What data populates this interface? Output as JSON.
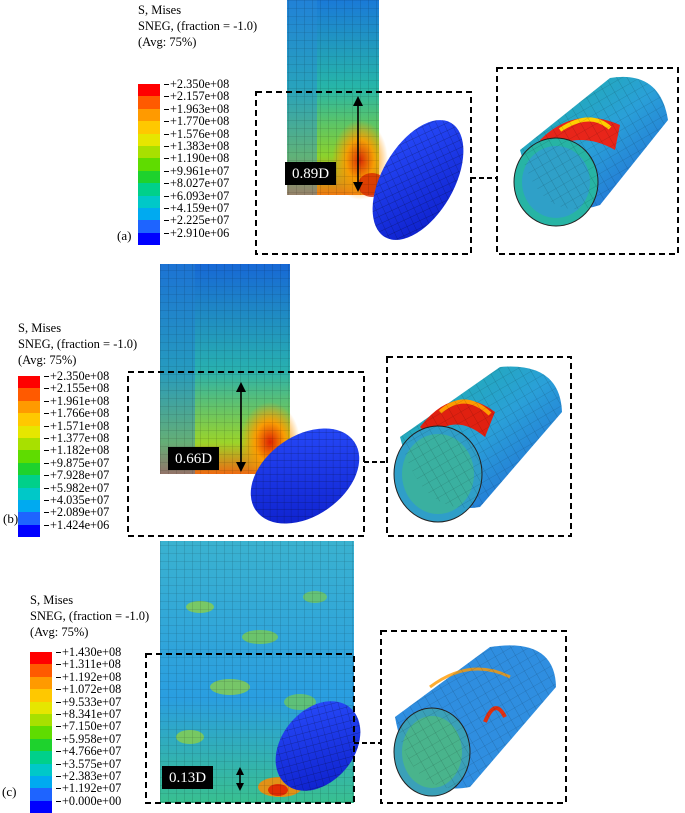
{
  "legend_colors": [
    "#ff0000",
    "#ff5a00",
    "#ff9a00",
    "#ffc800",
    "#e6e600",
    "#a8e000",
    "#5fdc00",
    "#1ed22d",
    "#00d08a",
    "#00c8c8",
    "#00aaf0",
    "#1e64ff",
    "#0000ff"
  ],
  "panels": [
    {
      "id": "a",
      "label": "(a)",
      "legend_header": [
        "S, Mises",
        "SNEG, (fraction = -1.0)",
        "(Avg: 75%)"
      ],
      "ticks": [
        "+2.350e+08",
        "+2.157e+08",
        "+1.963e+08",
        "+1.770e+08",
        "+1.576e+08",
        "+1.383e+08",
        "+1.190e+08",
        "+9.961e+07",
        "+8.027e+07",
        "+6.093e+07",
        "+4.159e+07",
        "+2.225e+07",
        "+2.910e+06"
      ],
      "ratio": "0.89D"
    },
    {
      "id": "b",
      "label": "(b)",
      "legend_header": [
        "S, Mises",
        "SNEG, (fraction = -1.0)",
        "(Avg: 75%)"
      ],
      "ticks": [
        "+2.350e+08",
        "+2.155e+08",
        "+1.961e+08",
        "+1.766e+08",
        "+1.571e+08",
        "+1.377e+08",
        "+1.182e+08",
        "+9.875e+07",
        "+7.928e+07",
        "+5.982e+07",
        "+4.035e+07",
        "+2.089e+07",
        "+1.424e+06"
      ],
      "ratio": "0.66D"
    },
    {
      "id": "c",
      "label": "(c)",
      "legend_header": [
        "S, Mises",
        "SNEG, (fraction = -1.0)",
        "(Avg: 75%)"
      ],
      "ticks": [
        "+1.430e+08",
        "+1.311e+08",
        "+1.192e+08",
        "+1.072e+08",
        "+9.533e+07",
        "+8.341e+07",
        "+7.150e+07",
        "+5.958e+07",
        "+4.766e+07",
        "+3.575e+07",
        "+2.383e+07",
        "+1.192e+07",
        "+0.000e+00"
      ],
      "ratio": "0.13D"
    }
  ]
}
